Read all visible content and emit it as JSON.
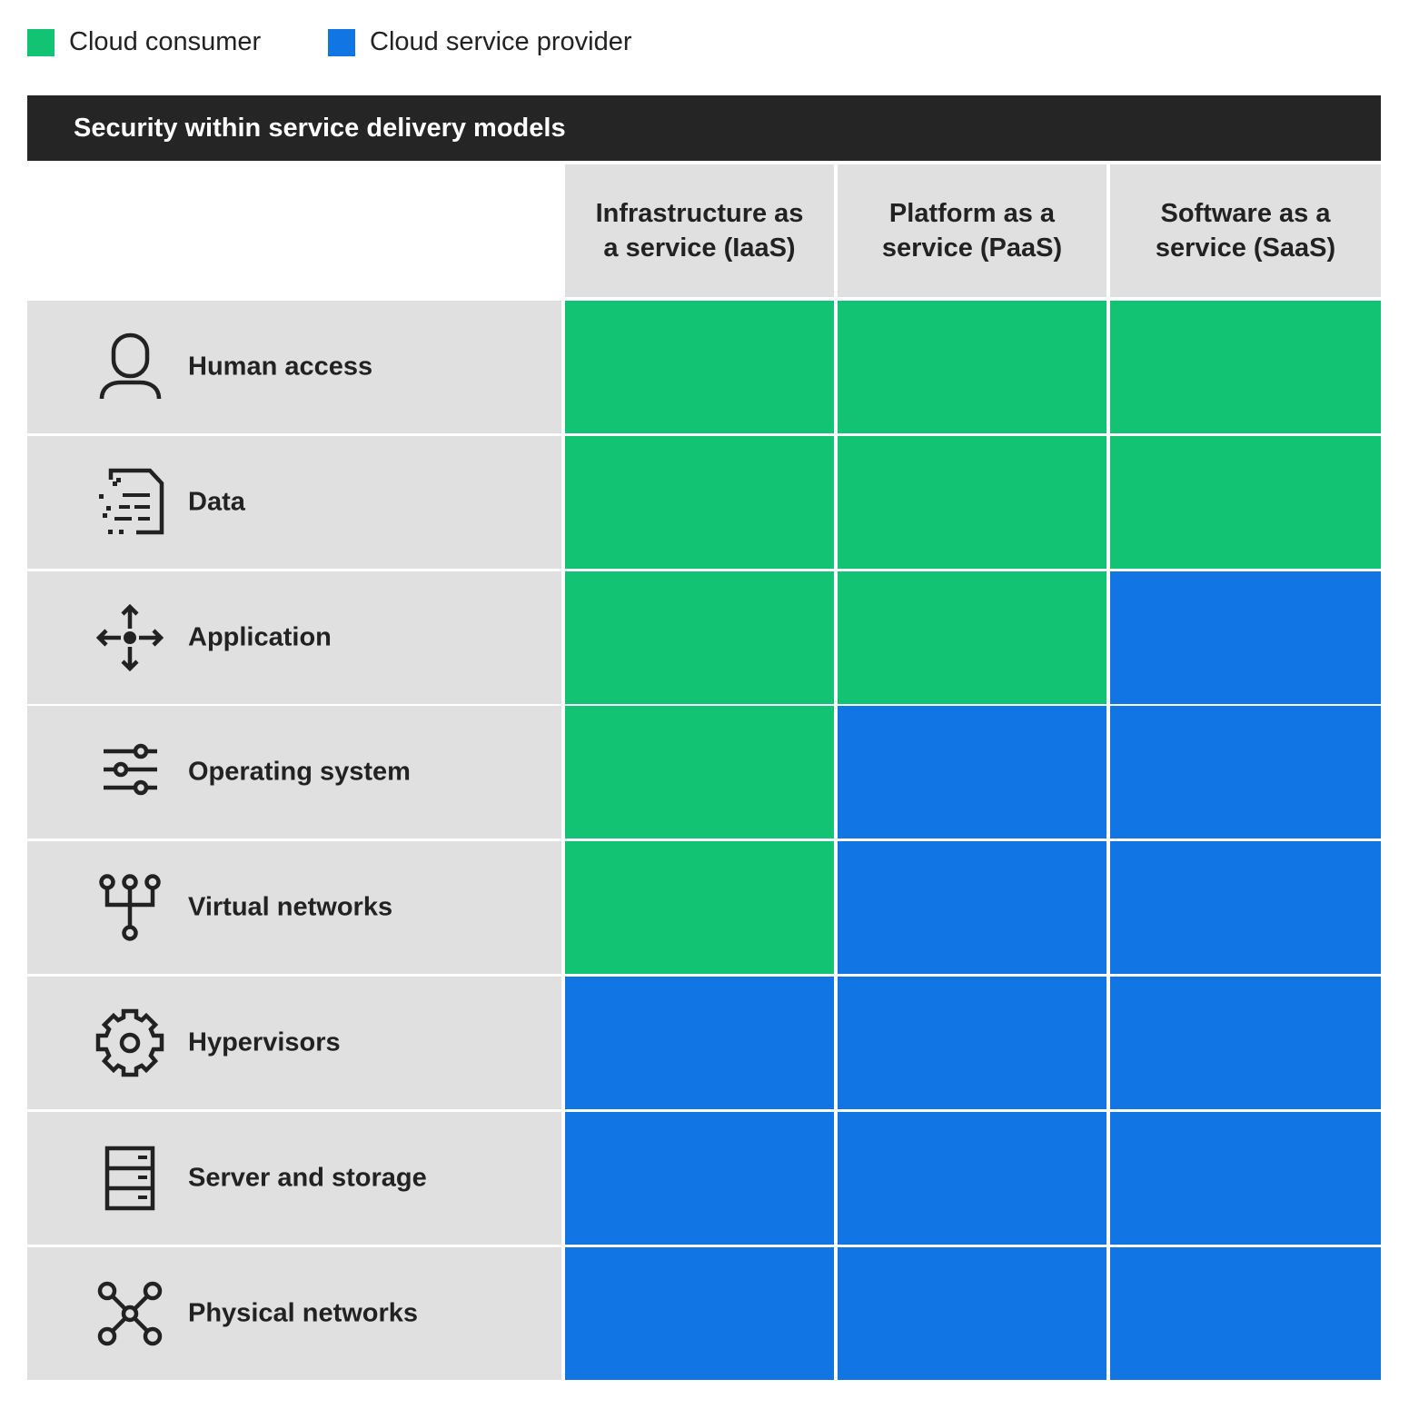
{
  "legend": [
    {
      "label": "Cloud consumer",
      "key": "consumer"
    },
    {
      "label": "Cloud service provider",
      "key": "provider"
    }
  ],
  "colors": {
    "consumer": "#12c373",
    "provider": "#1175e4",
    "title_bg": "#252525",
    "label_bg": "#e0e0e0"
  },
  "title": "Security within service delivery models",
  "columns": [
    "Infrastructure as\na service (IaaS)",
    "Platform as a\nservice (PaaS)",
    "Software as a\nservice (SaaS)"
  ],
  "rows": [
    {
      "label": "Human access",
      "icon": "person-icon",
      "cells": [
        "consumer",
        "consumer",
        "consumer"
      ]
    },
    {
      "label": "Data",
      "icon": "document-data-icon",
      "cells": [
        "consumer",
        "consumer",
        "consumer"
      ]
    },
    {
      "label": "Application",
      "icon": "move-arrows-icon",
      "cells": [
        "consumer",
        "consumer",
        "provider"
      ]
    },
    {
      "label": "Operating system",
      "icon": "sliders-icon",
      "cells": [
        "consumer",
        "provider",
        "provider"
      ]
    },
    {
      "label": "Virtual networks",
      "icon": "network-tree-icon",
      "cells": [
        "consumer",
        "provider",
        "provider"
      ]
    },
    {
      "label": "Hypervisors",
      "icon": "gear-icon",
      "cells": [
        "provider",
        "provider",
        "provider"
      ]
    },
    {
      "label": "Server and storage",
      "icon": "server-icon",
      "cells": [
        "provider",
        "provider",
        "provider"
      ]
    },
    {
      "label": "Physical networks",
      "icon": "network-hub-icon",
      "cells": [
        "provider",
        "provider",
        "provider"
      ]
    }
  ]
}
